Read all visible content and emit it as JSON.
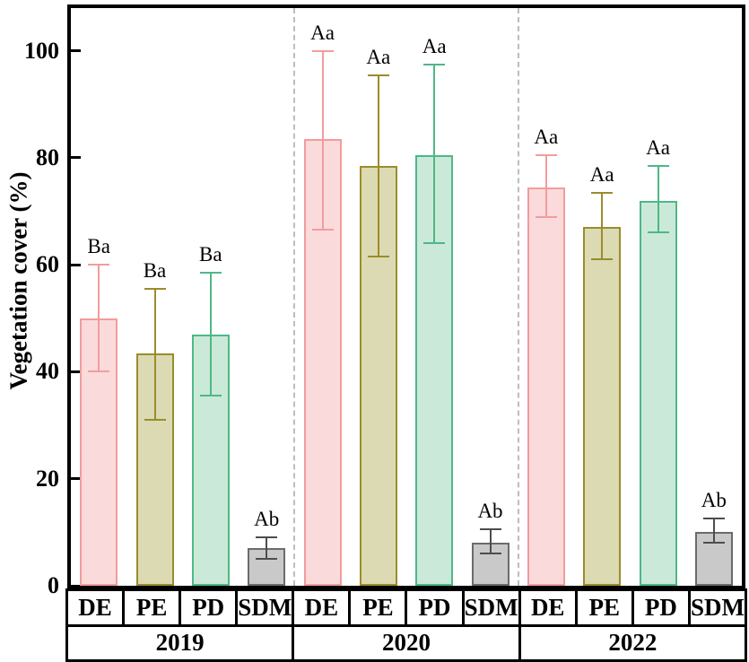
{
  "chart_data": {
    "type": "bar",
    "title": "",
    "xlabel": "",
    "ylabel": "Vegetation cover (%)",
    "ylim": [
      0,
      108
    ],
    "yticks": [
      0,
      20,
      40,
      60,
      80,
      100
    ],
    "grid": false,
    "legend": "none",
    "categories": [
      "DE",
      "PE",
      "PD",
      "SDM"
    ],
    "group_labels": [
      "2019",
      "2020",
      "2022"
    ],
    "groups": [
      {
        "label": "2019",
        "bars": [
          {
            "category": "DE",
            "value": 50,
            "err_low": 40,
            "err_high": 60,
            "sig_label": "Ba"
          },
          {
            "category": "PE",
            "value": 43.5,
            "err_low": 31,
            "err_high": 55.5,
            "sig_label": "Ba"
          },
          {
            "category": "PD",
            "value": 47,
            "err_low": 35.5,
            "err_high": 58.5,
            "sig_label": "Ba"
          },
          {
            "category": "SDM",
            "value": 7,
            "err_low": 5,
            "err_high": 9,
            "sig_label": "Ab"
          }
        ]
      },
      {
        "label": "2020",
        "bars": [
          {
            "category": "DE",
            "value": 83.5,
            "err_low": 66.5,
            "err_high": 100,
            "sig_label": "Aa"
          },
          {
            "category": "PE",
            "value": 78.5,
            "err_low": 61.5,
            "err_high": 95.5,
            "sig_label": "Aa"
          },
          {
            "category": "PD",
            "value": 80.5,
            "err_low": 64,
            "err_high": 97.5,
            "sig_label": "Aa"
          },
          {
            "category": "SDM",
            "value": 8,
            "err_low": 6,
            "err_high": 10.5,
            "sig_label": "Ab"
          }
        ]
      },
      {
        "label": "2022",
        "bars": [
          {
            "category": "DE",
            "value": 74.5,
            "err_low": 69,
            "err_high": 80.5,
            "sig_label": "Aa"
          },
          {
            "category": "PE",
            "value": 67,
            "err_low": 61,
            "err_high": 73.5,
            "sig_label": "Aa"
          },
          {
            "category": "PD",
            "value": 72,
            "err_low": 66,
            "err_high": 78.5,
            "sig_label": "Aa"
          },
          {
            "category": "SDM",
            "value": 10,
            "err_low": 8,
            "err_high": 12.5,
            "sig_label": "Ab"
          }
        ]
      }
    ],
    "category_styles": {
      "DE": {
        "fill": "#FBDADB",
        "stroke": "#F29C9E",
        "error_color": "#F29C9E"
      },
      "PE": {
        "fill": "#DCDAB3",
        "stroke": "#9A8C2B",
        "error_color": "#9A8C2B"
      },
      "PD": {
        "fill": "#CBE9D8",
        "stroke": "#4FB787",
        "error_color": "#4FB787"
      },
      "SDM": {
        "fill": "#C9C9C9",
        "stroke": "#6B6B6B",
        "error_color": "#4D4D4D"
      }
    },
    "separator_color": "#BDBDBD",
    "axis_color": "#000000",
    "text_color": "#000000"
  }
}
